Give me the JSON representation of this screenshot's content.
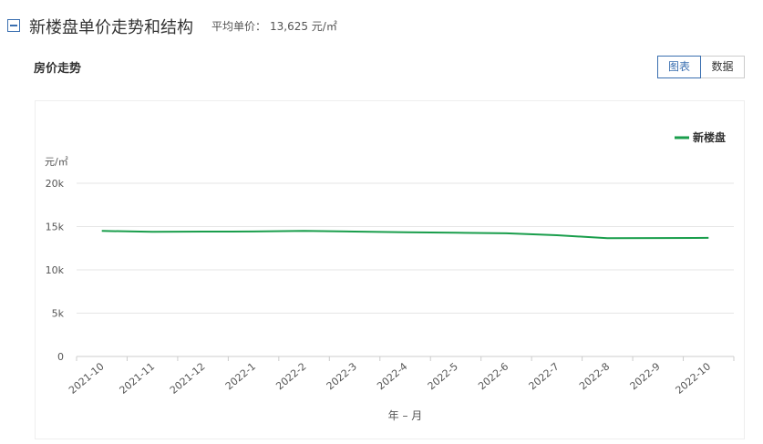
{
  "header": {
    "title": "新楼盘单价走势和结构",
    "avg_price_label": "平均单价：",
    "avg_price_value": "13,625 元/㎡"
  },
  "section": {
    "title": "房价走势"
  },
  "view_toggle": {
    "chart_label": "图表",
    "data_label": "数据",
    "active": "chart"
  },
  "chart_data": {
    "type": "line",
    "x": [
      "2021-10",
      "2021-11",
      "2021-12",
      "2022-1",
      "2022-2",
      "2022-3",
      "2022-4",
      "2022-5",
      "2022-6",
      "2022-7",
      "2022-8",
      "2022-9",
      "2022-10"
    ],
    "series": [
      {
        "name": "新楼盘",
        "color": "#1a9e4c",
        "values": [
          14500,
          14400,
          14420,
          14430,
          14500,
          14420,
          14350,
          14280,
          14220,
          14000,
          13660,
          13670,
          13690
        ]
      }
    ],
    "ylabel": "元/㎡",
    "xlabel": "年 – 月",
    "yticks": [
      "0",
      "5k",
      "10k",
      "15k",
      "20k"
    ],
    "ytick_values": [
      0,
      5000,
      10000,
      15000,
      20000
    ],
    "ylim": [
      0,
      20000
    ],
    "grid": true,
    "legend_position": "top-right"
  }
}
